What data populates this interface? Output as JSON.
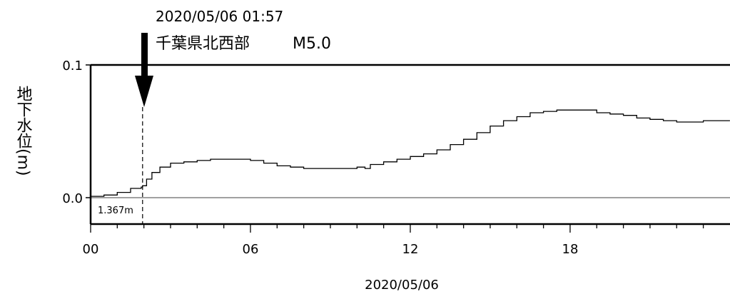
{
  "chart_data": {
    "type": "line",
    "title": "",
    "event": {
      "datetime": "2020/05/06 01:57",
      "location": "千葉県北西部",
      "magnitude": "M5.0",
      "x_hours": 1.95
    },
    "xlabel": "2020/05/06",
    "ylabel": "地下水位(m)",
    "x_ticks": [
      "00",
      "06",
      "12",
      "18"
    ],
    "y_ticks": [
      "0.0",
      "0.1"
    ],
    "xlim_hours": [
      0,
      24
    ],
    "ylim": [
      -0.02,
      0.1
    ],
    "baseline_label": "1.367m",
    "baseline_value": 0.0,
    "grid": false,
    "series": [
      {
        "x_hours": [
          0,
          0.5,
          1.0,
          1.5,
          1.9,
          1.95,
          2.1,
          2.3,
          2.6,
          3.0,
          3.5,
          4.0,
          4.5,
          5.0,
          5.5,
          6.0,
          6.5,
          7.0,
          7.5,
          8.0,
          8.5,
          9.0,
          9.5,
          10.0,
          10.3,
          10.5,
          11.0,
          11.5,
          12.0,
          12.5,
          13.0,
          13.5,
          14.0,
          14.5,
          15.0,
          15.5,
          16.0,
          16.5,
          17.0,
          17.5,
          18.0,
          18.5,
          19.0,
          19.5,
          20.0,
          20.5,
          21.0,
          21.5,
          22.0,
          22.5,
          23.0,
          23.5,
          24.0
        ],
        "values": [
          0.001,
          0.002,
          0.004,
          0.007,
          0.008,
          0.009,
          0.014,
          0.019,
          0.023,
          0.026,
          0.027,
          0.028,
          0.029,
          0.029,
          0.029,
          0.028,
          0.026,
          0.024,
          0.023,
          0.022,
          0.022,
          0.022,
          0.022,
          0.023,
          0.022,
          0.025,
          0.027,
          0.029,
          0.031,
          0.033,
          0.036,
          0.04,
          0.044,
          0.049,
          0.054,
          0.058,
          0.061,
          0.064,
          0.065,
          0.066,
          0.066,
          0.066,
          0.064,
          0.063,
          0.062,
          0.06,
          0.059,
          0.058,
          0.057,
          0.057,
          0.058,
          0.058,
          0.058
        ]
      }
    ]
  }
}
